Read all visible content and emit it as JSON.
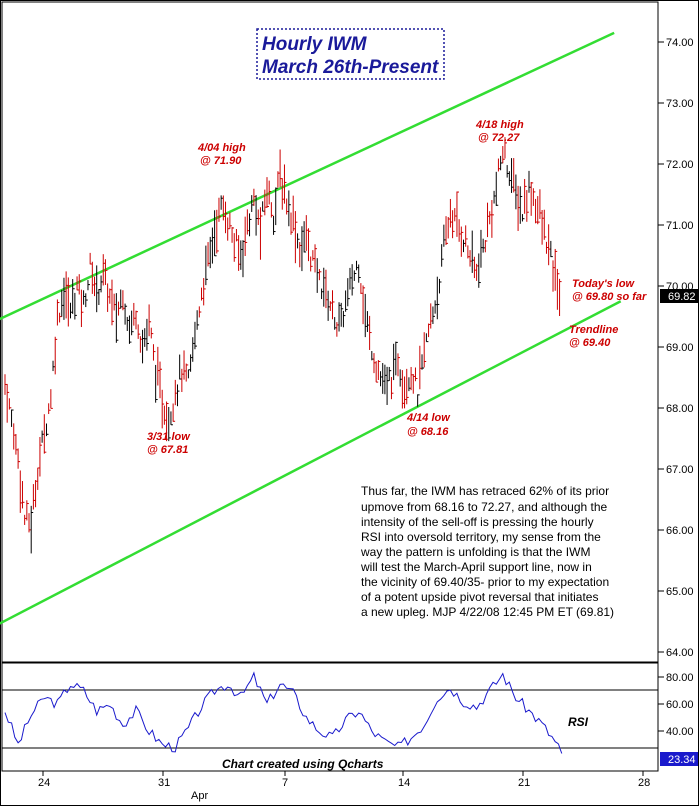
{
  "title": {
    "line1": "Hourly IWM",
    "line2": "March 26th-Present"
  },
  "price_axis_labels": [
    "74.00",
    "73.00",
    "72.00",
    "71.00",
    "70.00",
    "69.00",
    "68.00",
    "67.00",
    "66.00",
    "65.00",
    "64.00"
  ],
  "last_price_badge": "69.82",
  "rsi_axis_labels": [
    "80.00",
    "60.00",
    "40.00"
  ],
  "rsi_badge": "23.34",
  "rsi_label": "RSI",
  "x_tick_labels": [
    "24",
    "31",
    "7",
    "14",
    "21",
    "28"
  ],
  "month_label": "Apr",
  "credit": "Chart created using Qcharts",
  "annotations": {
    "high_0404": [
      "4/04 high",
      "@ 71.90"
    ],
    "high_0418": [
      "4/18 high",
      "@ 72.27"
    ],
    "low_0331": [
      "3/31 low",
      "@ 67.81"
    ],
    "low_0414": [
      "4/14 low",
      "@ 68.16"
    ],
    "todays_low": [
      "Today's low",
      "@ 69.80 so far"
    ],
    "trendline": [
      "Trendline",
      "@ 69.40"
    ]
  },
  "commentary": [
    "Thus far, the IWM has retraced 62% of its prior",
    "upmove from 68.16 to 72.27, and although the",
    "intensity of the sell-off is pressing the hourly",
    "RSI into oversold territory, my sense from the",
    "way the pattern is unfolding is that the IWM",
    "will test the March-April support line, now in",
    "the vicinity of 69.40/35- prior to my expectation",
    "of a potent upside pivot reversal that initiates",
    "a new upleg. MJP  4/22/08  12:45 PM ET  (69.81)"
  ],
  "colors": {
    "bar_up": "#000000",
    "bar_down": "#cc0000",
    "channel": "#33dd33",
    "rsi_line": "#1a1acc",
    "title_text": "#1a1a9a",
    "annotation": "#cc0000"
  },
  "chart_data": {
    "type": "line",
    "x_unit": "hourly bars",
    "price_ylim": [
      63.9,
      74.5
    ],
    "price_path": [
      [
        0,
        68.4
      ],
      [
        1,
        67.8
      ],
      [
        2,
        67.2
      ],
      [
        3,
        66.2
      ],
      [
        4,
        66.1
      ],
      [
        5,
        67.0
      ],
      [
        6,
        67.6
      ],
      [
        7,
        68.2
      ],
      [
        8,
        69.5
      ],
      [
        9,
        69.9
      ],
      [
        10,
        69.6
      ],
      [
        11,
        70.0
      ],
      [
        12,
        69.7
      ],
      [
        13,
        70.3
      ],
      [
        14,
        69.9
      ],
      [
        15,
        70.2
      ],
      [
        16,
        69.8
      ],
      [
        17,
        69.5
      ],
      [
        18,
        69.9
      ],
      [
        19,
        69.3
      ],
      [
        20,
        69.6
      ],
      [
        21,
        69.0
      ],
      [
        22,
        69.4
      ],
      [
        23,
        68.6
      ],
      [
        24,
        68.1
      ],
      [
        25,
        67.8
      ],
      [
        26,
        68.3
      ],
      [
        27,
        68.6
      ],
      [
        28,
        68.4
      ],
      [
        29,
        69.2
      ],
      [
        30,
        69.9
      ],
      [
        31,
        70.4
      ],
      [
        32,
        70.9
      ],
      [
        33,
        71.3
      ],
      [
        34,
        71.1
      ],
      [
        35,
        70.7
      ],
      [
        36,
        70.5
      ],
      [
        37,
        71.0
      ],
      [
        38,
        71.4
      ],
      [
        39,
        70.9
      ],
      [
        40,
        71.6
      ],
      [
        41,
        71.2
      ],
      [
        42,
        71.8
      ],
      [
        43,
        71.4
      ],
      [
        44,
        71.1
      ],
      [
        45,
        70.6
      ],
      [
        46,
        70.8
      ],
      [
        47,
        70.4
      ],
      [
        48,
        70.1
      ],
      [
        49,
        69.9
      ],
      [
        50,
        69.6
      ],
      [
        51,
        69.3
      ],
      [
        52,
        69.7
      ],
      [
        53,
        70.1
      ],
      [
        54,
        70.4
      ],
      [
        55,
        69.5
      ],
      [
        56,
        69.0
      ],
      [
        57,
        68.6
      ],
      [
        58,
        68.3
      ],
      [
        59,
        68.5
      ],
      [
        60,
        68.8
      ],
      [
        61,
        68.4
      ],
      [
        62,
        68.6
      ],
      [
        63,
        68.25
      ],
      [
        64,
        68.9
      ],
      [
        65,
        69.4
      ],
      [
        66,
        69.9
      ],
      [
        67,
        70.6
      ],
      [
        68,
        71.2
      ],
      [
        69,
        71.0
      ],
      [
        70,
        70.8
      ],
      [
        71,
        70.5
      ],
      [
        72,
        70.2
      ],
      [
        73,
        70.6
      ],
      [
        74,
        71.1
      ],
      [
        75,
        71.6
      ],
      [
        76,
        72.2
      ],
      [
        77,
        71.9
      ],
      [
        78,
        71.5
      ],
      [
        79,
        71.2
      ],
      [
        80,
        71.6
      ],
      [
        81,
        71.4
      ],
      [
        82,
        71.0
      ],
      [
        83,
        70.6
      ],
      [
        84,
        70.1
      ],
      [
        85,
        69.8
      ]
    ],
    "rsi_ylim": [
      15,
      95
    ],
    "rsi_path": [
      [
        0,
        55
      ],
      [
        2,
        30
      ],
      [
        4,
        52
      ],
      [
        6,
        65
      ],
      [
        8,
        60
      ],
      [
        10,
        75
      ],
      [
        12,
        70
      ],
      [
        14,
        55
      ],
      [
        16,
        60
      ],
      [
        18,
        45
      ],
      [
        20,
        55
      ],
      [
        22,
        40
      ],
      [
        24,
        30
      ],
      [
        26,
        28
      ],
      [
        28,
        42
      ],
      [
        30,
        58
      ],
      [
        32,
        70
      ],
      [
        34,
        75
      ],
      [
        36,
        65
      ],
      [
        38,
        80
      ],
      [
        40,
        60
      ],
      [
        42,
        75
      ],
      [
        44,
        68
      ],
      [
        46,
        50
      ],
      [
        48,
        40
      ],
      [
        50,
        35
      ],
      [
        52,
        48
      ],
      [
        54,
        55
      ],
      [
        56,
        40
      ],
      [
        58,
        32
      ],
      [
        60,
        28
      ],
      [
        62,
        35
      ],
      [
        64,
        45
      ],
      [
        66,
        65
      ],
      [
        68,
        72
      ],
      [
        70,
        62
      ],
      [
        72,
        58
      ],
      [
        74,
        70
      ],
      [
        76,
        82
      ],
      [
        78,
        65
      ],
      [
        80,
        55
      ],
      [
        82,
        45
      ],
      [
        84,
        32
      ],
      [
        85,
        23.34
      ]
    ],
    "rsi_ref_lines": [
      70,
      30
    ],
    "channel_lines": [
      {
        "name": "upper",
        "from": [
          -2,
          69.4
        ],
        "to": [
          93,
          74.15
        ]
      },
      {
        "name": "lower",
        "from": [
          -2,
          64.4
        ],
        "to": [
          94,
          69.75
        ]
      }
    ],
    "x_ticks": [
      "24",
      "31",
      "7",
      "14",
      "21",
      "28"
    ],
    "grid": false,
    "last_price": 69.82,
    "last_rsi": 23.34
  }
}
